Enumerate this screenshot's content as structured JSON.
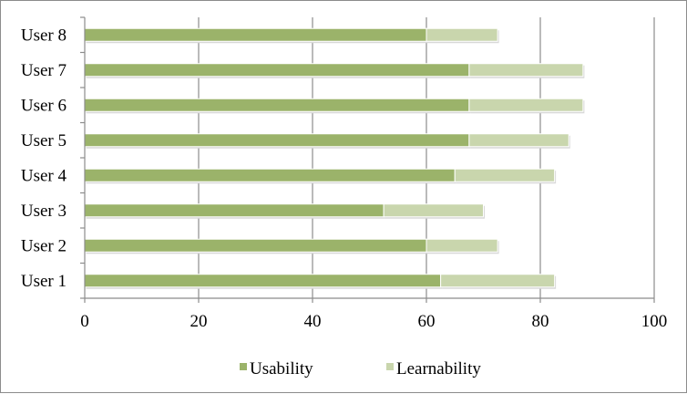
{
  "chart_data": {
    "type": "bar",
    "orientation": "horizontal",
    "stacked": true,
    "categories": [
      "User 1",
      "User 2",
      "User 3",
      "User 4",
      "User 5",
      "User 6",
      "User 7",
      "User 8"
    ],
    "series": [
      {
        "name": "Usability",
        "color": "#9bb36a",
        "values": [
          62.5,
          60,
          52.5,
          65,
          67.5,
          67.5,
          67.5,
          60
        ]
      },
      {
        "name": "Learnability",
        "color": "#c9d6ad",
        "values": [
          20,
          12.5,
          17.5,
          17.5,
          17.5,
          20,
          20,
          12.5
        ]
      }
    ],
    "xlim": [
      0,
      100
    ],
    "xticks": [
      "0",
      "20",
      "40",
      "60",
      "80",
      "100"
    ],
    "xtick_values": [
      0,
      20,
      40,
      60,
      80,
      100
    ],
    "grid": "vertical",
    "legend_position": "bottom",
    "gridline_color": "#8c8c8c"
  }
}
